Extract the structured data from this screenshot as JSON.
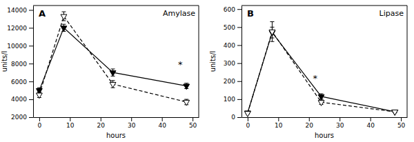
{
  "chart_data": [
    {
      "type": "line",
      "title": "Amylase",
      "x_label": "hours",
      "y_label": "units/l",
      "xlim": [
        -2,
        52
      ],
      "ylim": [
        2000,
        14500
      ],
      "xticks": [
        0,
        10,
        20,
        30,
        40,
        50
      ],
      "yticks": [
        2000,
        4000,
        6000,
        8000,
        10000,
        12000,
        14000
      ],
      "grid": false,
      "series": [
        {
          "color": "#000000",
          "marker": "triangle-down",
          "line_style": "solid",
          "x": [
            0,
            8,
            24,
            48
          ],
          "values": [
            5000,
            12000,
            7000,
            5500
          ],
          "errors": [
            300,
            400,
            400,
            300
          ]
        },
        {
          "color": "#000000",
          "marker": "triangle-down-open",
          "line_style": "dashed",
          "x": [
            0,
            8,
            24,
            48
          ],
          "values": [
            4500,
            13300,
            5700,
            3700
          ],
          "errors": [
            300,
            500,
            400,
            300
          ]
        }
      ],
      "annotations": [
        {
          "text": "A"
        },
        {
          "text": "*",
          "x": 46,
          "y": 7900
        }
      ]
    },
    {
      "type": "line",
      "title": "Lipase",
      "x_label": "hours",
      "y_label": "units/l",
      "xlim": [
        -2,
        52
      ],
      "ylim": [
        0,
        620
      ],
      "xticks": [
        0,
        10,
        20,
        30,
        40,
        50
      ],
      "yticks": [
        0,
        100,
        200,
        300,
        400,
        500,
        600
      ],
      "grid": false,
      "series": [
        {
          "color": "#000000",
          "marker": "triangle-down",
          "line_style": "solid",
          "x": [
            0,
            8,
            24,
            48
          ],
          "values": [
            25,
            470,
            115,
            30
          ],
          "errors": [
            5,
            30,
            15,
            5
          ]
        },
        {
          "color": "#000000",
          "marker": "triangle-down-open",
          "line_style": "dashed",
          "x": [
            0,
            8,
            24,
            48
          ],
          "values": [
            22,
            475,
            83,
            30
          ],
          "errors": [
            5,
            55,
            12,
            5
          ]
        }
      ],
      "annotations": [
        {
          "text": "B"
        },
        {
          "text": "*",
          "x": 22,
          "y": 215
        }
      ]
    }
  ]
}
